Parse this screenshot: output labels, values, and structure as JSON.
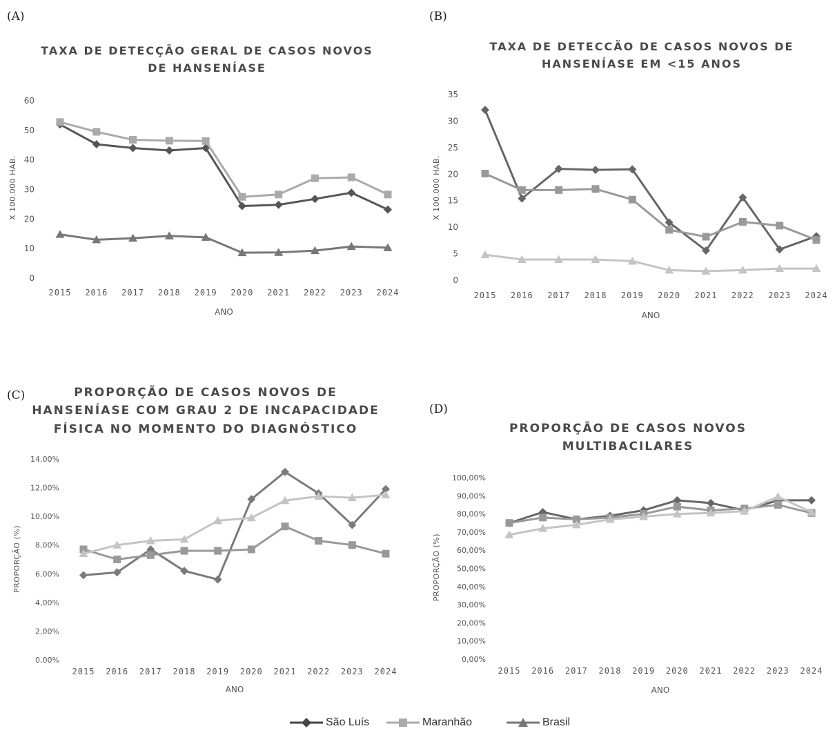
{
  "legend": [
    {
      "name": "São Luís",
      "color": "#555555",
      "marker": "diamond"
    },
    {
      "name": "Maranhão",
      "color": "#aaaaaa",
      "marker": "square"
    },
    {
      "name": "Brasil",
      "color": "#777777",
      "marker": "triangle"
    }
  ],
  "chart_data": [
    {
      "letter": "(A)",
      "type": "line",
      "title": [
        "TAXA DE DETECÇÃO GERAL DE CASOS NOVOS",
        "DE HANSENÍASE"
      ],
      "xlabel": "ANO",
      "ylabel": "X 100.000 HAB.",
      "ylim": [
        0,
        60
      ],
      "yticks": [
        "0",
        "10",
        "20",
        "30",
        "40",
        "50",
        "60"
      ],
      "categories": [
        "2015",
        "2016",
        "2017",
        "2018",
        "2019",
        "2020",
        "2021",
        "2022",
        "2023",
        "2024"
      ],
      "series": [
        {
          "name": "São Luís",
          "marker": "diamond",
          "color": "#555555",
          "values": [
            52,
            45.3,
            44,
            43.2,
            44,
            24.4,
            24.8,
            26.8,
            28.9,
            23.2
          ]
        },
        {
          "name": "Maranhão",
          "marker": "square",
          "color": "#aaaaaa",
          "values": [
            52.8,
            49.5,
            46.8,
            46.5,
            46.4,
            27.5,
            28.3,
            33.8,
            34.1,
            28.3
          ]
        },
        {
          "name": "Brasil",
          "marker": "triangle",
          "color": "#777777",
          "values": [
            14.8,
            13,
            13.5,
            14.3,
            13.8,
            8.6,
            8.7,
            9.3,
            10.7,
            10.3
          ]
        }
      ]
    },
    {
      "letter": "(B)",
      "type": "line",
      "title": [
        "TAXA DE DETECCÃO DE CASOS NOVOS DE",
        "HANSENÍASE EM <15 ANOS"
      ],
      "xlabel": "ANO",
      "ylabel": "X 100.000 HAB.",
      "ylim": [
        0,
        35
      ],
      "yticks": [
        "0",
        "5",
        "10",
        "15",
        "20",
        "25",
        "30",
        "35"
      ],
      "categories": [
        "2015",
        "2016",
        "2017",
        "2018",
        "2019",
        "2020",
        "2021",
        "2022",
        "2023",
        "2024"
      ],
      "series": [
        {
          "name": "São Luís",
          "marker": "diamond",
          "color": "#666666",
          "values": [
            32.1,
            15.4,
            21,
            20.8,
            20.9,
            10.9,
            5.6,
            15.6,
            5.8,
            8.3
          ]
        },
        {
          "name": "Maranhão",
          "marker": "square",
          "color": "#999999",
          "values": [
            20.1,
            17,
            17,
            17.2,
            15.2,
            9.5,
            8.2,
            11,
            10.3,
            7.6
          ]
        },
        {
          "name": "Brasil",
          "marker": "triangle",
          "color": "#c4c4c4",
          "values": [
            4.8,
            3.9,
            3.9,
            3.9,
            3.6,
            1.9,
            1.7,
            1.9,
            2.2,
            2.2
          ]
        }
      ]
    },
    {
      "letter": "(C)",
      "type": "line",
      "title": [
        "PROPORÇÃO DE CASOS NOVOS DE",
        "HANSENÍASE COM GRAU 2 DE INCAPACIDADE",
        "FÍSICA NO MOMENTO DO DIAGNÓSTICO"
      ],
      "xlabel": "ANO",
      "ylabel": "PROPORÇÃO (%)",
      "ylim": [
        0,
        14
      ],
      "yticks": [
        "0,00%",
        "2,00%",
        "4,00%",
        "6,00%",
        "8,00%",
        "10,00%",
        "12,00%",
        "14,00%"
      ],
      "categories": [
        "2015",
        "2016",
        "2017",
        "2018",
        "2019",
        "2020",
        "2021",
        "2022",
        "2023",
        "2024"
      ],
      "series": [
        {
          "name": "São Luís",
          "marker": "diamond",
          "color": "#7a7a7a",
          "values": [
            5.9,
            6.1,
            7.7,
            6.2,
            5.6,
            11.2,
            13.1,
            11.6,
            9.4,
            11.9
          ]
        },
        {
          "name": "Maranhão",
          "marker": "square",
          "color": "#999999",
          "values": [
            7.7,
            7,
            7.3,
            7.6,
            7.6,
            7.7,
            9.3,
            8.3,
            8,
            7.4
          ]
        },
        {
          "name": "Brasil",
          "marker": "triangle",
          "color": "#c4c4c4",
          "values": [
            7.4,
            8,
            8.3,
            8.4,
            9.7,
            9.9,
            11.1,
            11.4,
            11.3,
            11.5
          ]
        }
      ]
    },
    {
      "letter": "(D)",
      "type": "line",
      "title": [
        "PROPORÇÃO DE CASOS NOVOS",
        "MULTIBACILARES"
      ],
      "xlabel": "ANO",
      "ylabel": "PROPORÇÃO (%)",
      "ylim": [
        0,
        100
      ],
      "yticks": [
        "0,00%",
        "10,00%",
        "20,00%",
        "30,00%",
        "40,00%",
        "50,00%",
        "60,00%",
        "70,00%",
        "80,00%",
        "90,00%",
        "100,00%"
      ],
      "categories": [
        "2015",
        "2016",
        "2017",
        "2018",
        "2019",
        "2020",
        "2021",
        "2022",
        "2023",
        "2024"
      ],
      "series": [
        {
          "name": "São Luís",
          "marker": "diamond",
          "color": "#666666",
          "values": [
            75,
            81,
            77,
            79,
            82,
            87.5,
            86,
            82,
            87.5,
            87.5
          ]
        },
        {
          "name": "Maranhão",
          "marker": "square",
          "color": "#999999",
          "values": [
            75,
            78,
            77,
            78,
            80,
            84,
            82,
            83,
            85,
            80.5
          ]
        },
        {
          "name": "Brasil",
          "marker": "triangle",
          "color": "#c4c4c4",
          "values": [
            68.5,
            72,
            74,
            77,
            78.5,
            80,
            80.5,
            81.5,
            89.5,
            81
          ]
        }
      ]
    }
  ]
}
